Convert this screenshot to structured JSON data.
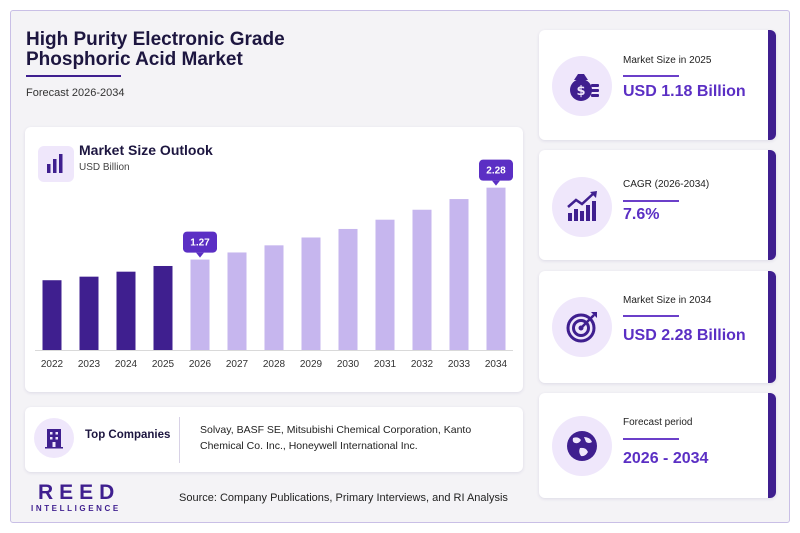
{
  "header": {
    "title": "High Purity Electronic Grade Phosphoric Acid Market",
    "subtitle": "Forecast 2026-2034"
  },
  "chart_section": {
    "title": "Market Size Outlook",
    "unit": "USD Billion"
  },
  "chart_data": {
    "type": "bar",
    "title": "Market Size Outlook",
    "ylabel": "USD Billion",
    "categories": [
      "2022",
      "2023",
      "2024",
      "2025",
      "2026",
      "2027",
      "2028",
      "2029",
      "2030",
      "2031",
      "2032",
      "2033",
      "2034"
    ],
    "values": [
      0.98,
      1.03,
      1.1,
      1.18,
      1.27,
      1.37,
      1.47,
      1.58,
      1.7,
      1.83,
      1.97,
      2.12,
      2.28
    ],
    "historical_through": "2025",
    "callouts": [
      {
        "category": "2026",
        "label": "1.27"
      },
      {
        "category": "2034",
        "label": "2.28"
      }
    ],
    "colors": {
      "historical": "#3f1f8f",
      "forecast": "#c6b6ee",
      "callout": "#5b2fc4"
    },
    "ylim": [
      0,
      2.5
    ],
    "grid": false,
    "legend": "none"
  },
  "stats": [
    {
      "label": "Market Size in 2025",
      "value": "USD 1.18 Billion",
      "icon": "money-bag-icon"
    },
    {
      "label": "CAGR (2026-2034)",
      "value": "7.6%",
      "icon": "growth-chart-icon"
    },
    {
      "label": "Market Size in 2034",
      "value": "USD 2.28 Billion",
      "icon": "target-icon"
    },
    {
      "label": "Forecast period",
      "value": "2026 - 2034",
      "icon": "globe-icon"
    }
  ],
  "companies": {
    "label": "Top Companies",
    "list": "Solvay, BASF SE, Mitsubishi Chemical Corporation, Kanto Chemical Co. Inc., Honeywell International Inc."
  },
  "source": "Source: Company Publications, Primary Interviews, and RI Analysis",
  "brand": {
    "name": "REED",
    "tagline": "INTELLIGENCE",
    "color": "#3f1f8f"
  }
}
